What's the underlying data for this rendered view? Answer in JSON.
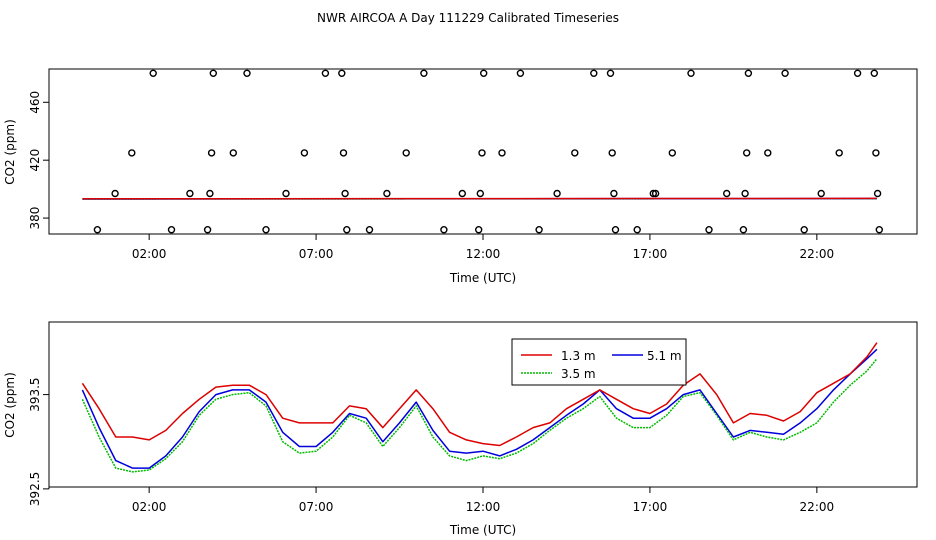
{
  "title": "NWR AIRCOA A  Day 111229  Calibrated Timeseries",
  "colors": {
    "s13": "#dd0000",
    "s35": "#00bb00",
    "s51": "#0000dd",
    "raw": "#000000",
    "frame": "#000000"
  },
  "chart_data": [
    {
      "type": "scatter",
      "title": "",
      "xlabel": "Time (UTC)",
      "ylabel": "CO2 (ppm)",
      "xlim": [
        -1.0,
        25.0
      ],
      "ylim": [
        369,
        483
      ],
      "xticks": [
        2,
        7,
        12,
        17,
        22
      ],
      "xtick_labels": [
        "02:00",
        "07:00",
        "12:00",
        "17:00",
        "22:00"
      ],
      "yticks": [
        380,
        420,
        460
      ],
      "ytick_labels": [
        "380",
        "420",
        "460"
      ],
      "raw_points": [
        [
          0.45,
          372
        ],
        [
          0.98,
          397
        ],
        [
          1.48,
          425
        ],
        [
          2.12,
          480
        ],
        [
          2.67,
          372
        ],
        [
          3.22,
          397
        ],
        [
          3.75,
          372
        ],
        [
          3.82,
          397
        ],
        [
          3.87,
          425
        ],
        [
          3.92,
          480
        ],
        [
          4.52,
          425
        ],
        [
          4.93,
          480
        ],
        [
          5.5,
          372
        ],
        [
          6.1,
          397
        ],
        [
          6.65,
          425
        ],
        [
          7.28,
          480
        ],
        [
          7.77,
          480
        ],
        [
          7.82,
          425
        ],
        [
          7.87,
          397
        ],
        [
          7.92,
          372
        ],
        [
          8.6,
          372
        ],
        [
          9.12,
          397
        ],
        [
          9.7,
          425
        ],
        [
          10.23,
          480
        ],
        [
          10.83,
          372
        ],
        [
          11.38,
          397
        ],
        [
          11.87,
          372
        ],
        [
          11.92,
          397
        ],
        [
          11.97,
          425
        ],
        [
          12.02,
          480
        ],
        [
          12.57,
          425
        ],
        [
          13.12,
          480
        ],
        [
          13.68,
          372
        ],
        [
          14.22,
          397
        ],
        [
          14.75,
          425
        ],
        [
          15.32,
          480
        ],
        [
          15.82,
          480
        ],
        [
          15.87,
          425
        ],
        [
          15.92,
          397
        ],
        [
          15.97,
          372
        ],
        [
          16.62,
          372
        ],
        [
          17.1,
          397
        ],
        [
          17.17,
          397
        ],
        [
          17.67,
          425
        ],
        [
          18.23,
          480
        ],
        [
          18.77,
          372
        ],
        [
          19.3,
          397
        ],
        [
          19.8,
          372
        ],
        [
          19.85,
          397
        ],
        [
          19.9,
          425
        ],
        [
          19.95,
          480
        ],
        [
          20.53,
          425
        ],
        [
          21.05,
          480
        ],
        [
          21.62,
          372
        ],
        [
          22.13,
          397
        ],
        [
          22.67,
          425
        ],
        [
          23.22,
          480
        ],
        [
          23.72,
          480
        ],
        [
          23.77,
          425
        ],
        [
          23.82,
          397
        ],
        [
          23.87,
          372
        ]
      ],
      "series": [
        {
          "name": "1.3 m",
          "x": [
            0,
            23.8
          ],
          "values": [
            393.3,
            393.6
          ]
        },
        {
          "name": "3.5 m",
          "x": [
            0,
            23.8
          ],
          "values": [
            393.1,
            393.4
          ]
        },
        {
          "name": "5.1 m",
          "x": [
            0,
            23.8
          ],
          "values": [
            393.2,
            393.5
          ]
        }
      ]
    },
    {
      "type": "line",
      "title": "",
      "xlabel": "Time (UTC)",
      "ylabel": "CO2 (ppm)",
      "xlim": [
        -1.0,
        25.0
      ],
      "ylim": [
        392.52,
        394.27
      ],
      "xticks": [
        2,
        7,
        12,
        17,
        22
      ],
      "xtick_labels": [
        "02:00",
        "07:00",
        "12:00",
        "17:00",
        "22:00"
      ],
      "yticks": [
        392.5,
        393.5
      ],
      "ytick_labels": [
        "392.5",
        "393.5"
      ],
      "legend": {
        "placement": "top-center",
        "entries": [
          "1.3 m",
          "3.5 m",
          "5.1 m"
        ]
      },
      "series": [
        {
          "name": "1.3 m",
          "x": [
            0,
            0.5,
            1.0,
            1.5,
            2.0,
            2.5,
            3.0,
            3.5,
            4.0,
            4.5,
            5.0,
            5.5,
            6.0,
            6.5,
            7.0,
            7.5,
            8.0,
            8.5,
            9.0,
            9.5,
            10.0,
            10.5,
            11.0,
            11.5,
            12.0,
            12.5,
            13.0,
            13.5,
            14.0,
            14.5,
            15.0,
            15.5,
            16.0,
            16.5,
            17.0,
            17.5,
            18.0,
            18.5,
            19.0,
            19.5,
            20.0,
            20.5,
            21.0,
            21.5,
            22.0,
            22.5,
            23.0,
            23.5,
            23.8
          ],
          "values": [
            393.62,
            393.35,
            393.05,
            393.05,
            393.02,
            393.12,
            393.3,
            393.45,
            393.58,
            393.6,
            393.6,
            393.5,
            393.25,
            393.2,
            393.2,
            393.2,
            393.38,
            393.35,
            393.15,
            393.35,
            393.55,
            393.35,
            393.1,
            393.02,
            392.98,
            392.96,
            393.05,
            393.15,
            393.2,
            393.35,
            393.45,
            393.55,
            393.45,
            393.35,
            393.3,
            393.4,
            393.6,
            393.72,
            393.5,
            393.2,
            393.3,
            393.28,
            393.22,
            393.32,
            393.52,
            393.62,
            393.72,
            393.9,
            394.05
          ]
        },
        {
          "name": "3.5 m",
          "x": [
            0,
            0.5,
            1.0,
            1.5,
            2.0,
            2.5,
            3.0,
            3.5,
            4.0,
            4.5,
            5.0,
            5.5,
            6.0,
            6.5,
            7.0,
            7.5,
            8.0,
            8.5,
            9.0,
            9.5,
            10.0,
            10.5,
            11.0,
            11.5,
            12.0,
            12.5,
            13.0,
            13.5,
            14.0,
            14.5,
            15.0,
            15.5,
            16.0,
            16.5,
            17.0,
            17.5,
            18.0,
            18.5,
            19.0,
            19.5,
            20.0,
            20.5,
            21.0,
            21.5,
            22.0,
            22.5,
            23.0,
            23.5,
            23.8
          ],
          "values": [
            393.45,
            393.05,
            392.72,
            392.68,
            392.7,
            392.82,
            393.0,
            393.28,
            393.45,
            393.5,
            393.52,
            393.38,
            393.0,
            392.88,
            392.9,
            393.05,
            393.28,
            393.2,
            392.95,
            393.15,
            393.38,
            393.05,
            392.85,
            392.8,
            392.85,
            392.82,
            392.88,
            392.98,
            393.12,
            393.25,
            393.35,
            393.48,
            393.25,
            393.15,
            393.15,
            393.28,
            393.48,
            393.52,
            393.28,
            393.02,
            393.1,
            393.05,
            393.02,
            393.1,
            393.2,
            393.42,
            393.6,
            393.75,
            393.88
          ]
        },
        {
          "name": "5.1 m",
          "x": [
            0,
            0.5,
            1.0,
            1.5,
            2.0,
            2.5,
            3.0,
            3.5,
            4.0,
            4.5,
            5.0,
            5.5,
            6.0,
            6.5,
            7.0,
            7.5,
            8.0,
            8.5,
            9.0,
            9.5,
            10.0,
            10.5,
            11.0,
            11.5,
            12.0,
            12.5,
            13.0,
            13.5,
            14.0,
            14.5,
            15.0,
            15.5,
            16.0,
            16.5,
            17.0,
            17.5,
            18.0,
            18.5,
            19.0,
            19.5,
            20.0,
            20.5,
            21.0,
            21.5,
            22.0,
            22.5,
            23.0,
            23.5,
            23.8
          ],
          "values": [
            393.55,
            393.15,
            392.8,
            392.72,
            392.72,
            392.85,
            393.05,
            393.32,
            393.5,
            393.55,
            393.55,
            393.42,
            393.1,
            392.95,
            392.95,
            393.1,
            393.3,
            393.25,
            393.0,
            393.2,
            393.42,
            393.12,
            392.9,
            392.88,
            392.9,
            392.85,
            392.92,
            393.02,
            393.15,
            393.28,
            393.4,
            393.55,
            393.35,
            393.25,
            393.25,
            393.35,
            393.5,
            393.55,
            393.3,
            393.05,
            393.12,
            393.1,
            393.08,
            393.2,
            393.35,
            393.55,
            393.72,
            393.88,
            393.98
          ]
        }
      ]
    }
  ]
}
